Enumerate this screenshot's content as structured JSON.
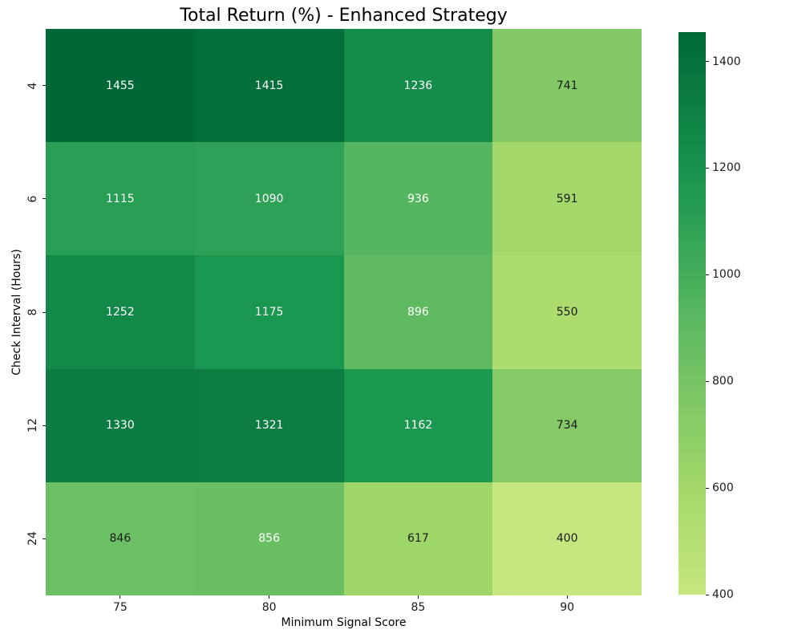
{
  "figure": {
    "background": "#ffffff",
    "text_color": "#1a1a1a",
    "tick_color": "#1a1a1a"
  },
  "chart_data": {
    "type": "heatmap",
    "title": "Total Return (%) - Enhanced Strategy",
    "xlabel": "Minimum Signal Score",
    "ylabel": "Check Interval (Hours)",
    "x_categories": [
      "75",
      "80",
      "85",
      "90"
    ],
    "y_categories": [
      "4",
      "6",
      "8",
      "12",
      "24"
    ],
    "values": [
      [
        1455,
        1415,
        1236,
        741
      ],
      [
        1115,
        1090,
        936,
        591
      ],
      [
        1252,
        1175,
        896,
        550
      ],
      [
        1330,
        1321,
        1162,
        734
      ],
      [
        846,
        856,
        617,
        400
      ]
    ],
    "cell_colors": [
      [
        "#006837",
        "#046f3a",
        "#148c4a",
        "#83ca66"
      ],
      [
        "#279e53",
        "#2da155",
        "#56b55f",
        "#a4d86a"
      ],
      [
        "#128948",
        "#19964f",
        "#60ba61",
        "#acdb6e"
      ],
      [
        "#0b7d42",
        "#0c7e43",
        "#1b9850",
        "#85ca66"
      ],
      [
        "#6cc064",
        "#6abf63",
        "#9ed669",
        "#c6e77f"
      ]
    ],
    "cell_text_colors": [
      [
        "#ffffff",
        "#ffffff",
        "#ffffff",
        "#1a1a1a"
      ],
      [
        "#ffffff",
        "#ffffff",
        "#ffffff",
        "#1a1a1a"
      ],
      [
        "#ffffff",
        "#ffffff",
        "#ffffff",
        "#1a1a1a"
      ],
      [
        "#ffffff",
        "#ffffff",
        "#ffffff",
        "#1a1a1a"
      ],
      [
        "#1a1a1a",
        "#ffffff",
        "#1a1a1a",
        "#1a1a1a"
      ]
    ],
    "legend_position": "right-colorbar",
    "grid": false,
    "colorbar": {
      "min": 400,
      "max": 1455,
      "ticks": [
        "1400",
        "1200",
        "1000",
        "800",
        "600",
        "400"
      ],
      "gradient_stops": [
        {
          "pct": 0,
          "color": "#006837"
        },
        {
          "pct": 5.2,
          "color": "#05713c"
        },
        {
          "pct": 14.7,
          "color": "#0e8244"
        },
        {
          "pct": 24.2,
          "color": "#17924d"
        },
        {
          "pct": 33.6,
          "color": "#2ba054"
        },
        {
          "pct": 43.1,
          "color": "#45ad5b"
        },
        {
          "pct": 52.6,
          "color": "#5fba61"
        },
        {
          "pct": 62.1,
          "color": "#76c465"
        },
        {
          "pct": 71.6,
          "color": "#8cce67"
        },
        {
          "pct": 81.0,
          "color": "#a2d76a"
        },
        {
          "pct": 90.5,
          "color": "#b4df73"
        },
        {
          "pct": 100,
          "color": "#c6e77f"
        }
      ]
    }
  }
}
